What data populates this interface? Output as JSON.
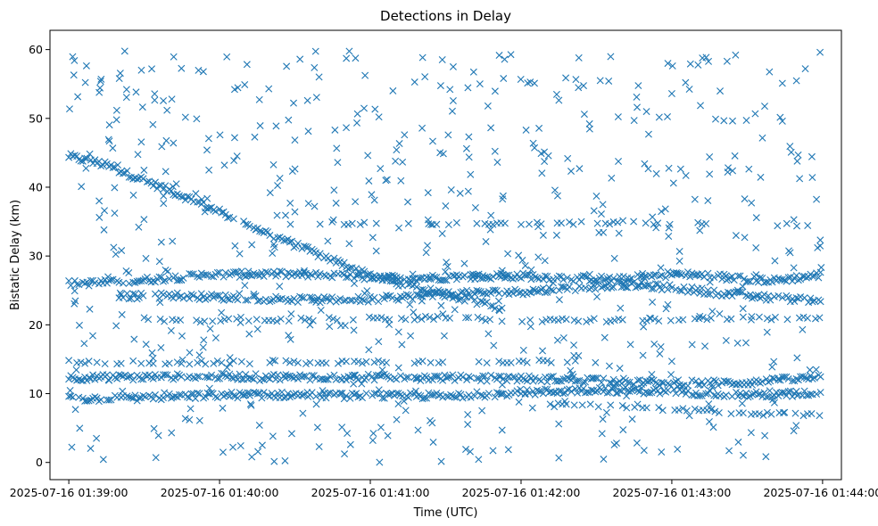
{
  "chart_data": {
    "type": "scatter",
    "title": "Detections in Delay",
    "xlabel": "Time (UTC)",
    "ylabel": "Bistatic Delay (km)",
    "marker": "x",
    "color": "#1f77b4",
    "x_range_seconds": [
      -7.5,
      307.5
    ],
    "xlim": [
      "2025-07-16 01:38:52",
      "2025-07-16 01:44:07"
    ],
    "ylim": [
      -2.5,
      62.8
    ],
    "x_ticks": [
      {
        "seconds": 0,
        "label": "2025-07-16 01:39:00"
      },
      {
        "seconds": 60,
        "label": "2025-07-16 01:40:00"
      },
      {
        "seconds": 120,
        "label": "2025-07-16 01:41:00"
      },
      {
        "seconds": 180,
        "label": "2025-07-16 01:42:00"
      },
      {
        "seconds": 240,
        "label": "2025-07-16 01:43:00"
      },
      {
        "seconds": 300,
        "label": "2025-07-16 01:44:00"
      }
    ],
    "y_ticks": [
      {
        "value": 0,
        "label": "0"
      },
      {
        "value": 10,
        "label": "10"
      },
      {
        "value": 20,
        "label": "20"
      },
      {
        "value": 30,
        "label": "30"
      },
      {
        "value": 40,
        "label": "40"
      },
      {
        "value": 50,
        "label": "50"
      },
      {
        "value": 60,
        "label": "60"
      }
    ],
    "series": [
      {
        "name": "descending target track",
        "x": [
          0,
          15,
          30,
          45,
          60,
          75,
          90,
          105,
          120,
          135,
          150,
          165,
          172
        ],
        "y": [
          44.5,
          43.2,
          41.0,
          38.8,
          36.4,
          34.0,
          31.6,
          29.4,
          27.3,
          25.6,
          24.4,
          23.2,
          22.5
        ]
      },
      {
        "name": "track near 27 km (first half)",
        "x": [
          0,
          20,
          40,
          60,
          80,
          100,
          120,
          140,
          160,
          175
        ],
        "y": [
          26.0,
          26.2,
          26.8,
          27.3,
          27.4,
          27.2,
          26.9,
          26.8,
          27.0,
          27.2
        ]
      },
      {
        "name": "track near 27 km (second half)",
        "x": [
          160,
          180,
          200,
          220,
          240,
          260,
          280,
          300
        ],
        "y": [
          27.0,
          27.1,
          26.8,
          26.6,
          27.4,
          27.0,
          26.4,
          27.3
        ]
      },
      {
        "name": "track near 24 km",
        "x": [
          20,
          40,
          60,
          80,
          100,
          120,
          140,
          160,
          180,
          200,
          220,
          240,
          260,
          280,
          300
        ],
        "y": [
          24.1,
          24.3,
          24.0,
          23.8,
          23.6,
          23.7,
          24.2,
          24.6,
          24.8,
          25.3,
          25.9,
          25.4,
          24.6,
          23.9,
          23.6
        ]
      },
      {
        "name": "track near 12 km",
        "x": [
          0,
          30,
          60,
          90,
          120,
          150,
          180,
          210,
          240,
          270,
          300
        ],
        "y": [
          12.3,
          12.4,
          12.5,
          12.4,
          12.4,
          12.3,
          12.2,
          12.0,
          11.5,
          11.6,
          12.4
        ]
      },
      {
        "name": "track near 10 km",
        "x": [
          0,
          30,
          60,
          90,
          120,
          150,
          180,
          210,
          240,
          270,
          300
        ],
        "y": [
          9.2,
          9.4,
          9.8,
          9.8,
          9.6,
          9.7,
          10.1,
          10.6,
          10.3,
          9.8,
          10.1
        ]
      },
      {
        "name": "track near 35 km",
        "x": [
          100,
          150,
          160,
          180,
          230,
          245,
          255
        ],
        "y": [
          34.8,
          34.6,
          34.6,
          34.7,
          34.8,
          34.7,
          34.6
        ]
      },
      {
        "name": "track near 21 km",
        "x": [
          30,
          50,
          120,
          145,
          180,
          210,
          240,
          270,
          300
        ],
        "y": [
          20.8,
          20.6,
          20.9,
          21.0,
          20.7,
          20.6,
          20.8,
          20.9,
          21.1
        ]
      },
      {
        "name": "track near 8 km",
        "x": [
          190,
          200,
          215,
          280,
          300
        ],
        "y": [
          8.3,
          8.4,
          8.2,
          7.0,
          6.9
        ]
      },
      {
        "name": "track near 14.5 km",
        "x": [
          0,
          40,
          100,
          200,
          210
        ],
        "y": [
          14.6,
          14.5,
          14.6,
          14.7,
          14.6
        ]
      },
      {
        "name": "scattered detections",
        "x": [
          2,
          11,
          19,
          26,
          33,
          41,
          48,
          55,
          63,
          70,
          77,
          84,
          92,
          99,
          107,
          114,
          121,
          129,
          136,
          143,
          151,
          158,
          166,
          173,
          181,
          188,
          195,
          203,
          210,
          218,
          225,
          233,
          240,
          247,
          255,
          262,
          269,
          277,
          284,
          292,
          299,
          5,
          14,
          23,
          37,
          52,
          66,
          81,
          95,
          110,
          124,
          139,
          153,
          168,
          182,
          197,
          211,
          226,
          240,
          255,
          269,
          284,
          298
        ],
        "y": [
          56.3,
          3.5,
          49.8,
          17.9,
          57.2,
          52.8,
          6.2,
          45.4,
          13.8,
          54.9,
          2.5,
          41.3,
          58.6,
          5.1,
          43.6,
          37.9,
          3.2,
          54.0,
          18.4,
          39.2,
          47.6,
          1.9,
          32.1,
          55.8,
          16.3,
          44.9,
          5.6,
          58.8,
          38.7,
          2.8,
          49.7,
          17.2,
          53.6,
          6.8,
          41.9,
          58.3,
          32.7,
          3.9,
          55.1,
          19.3,
          59.6,
          40.1,
          33.8,
          54.2,
          45.9,
          15.6,
          47.2,
          30.4,
          52.6,
          19.9,
          42.7,
          4.7,
          57.5,
          35.9,
          48.3,
          18.1,
          33.4,
          53.1,
          14.7,
          44.4,
          38.3,
          49.6,
          31.2
        ]
      }
    ]
  }
}
